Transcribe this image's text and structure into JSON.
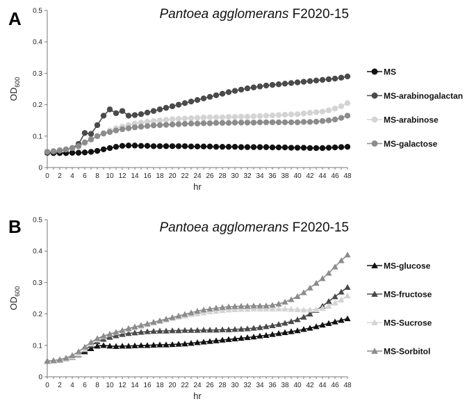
{
  "chart_data": [
    {
      "type": "line",
      "panel_label": "A",
      "title_italic": "Pantoea agglomerans",
      "title_rest": " F2020-15",
      "xlabel": "hr",
      "ylabel_main": "OD",
      "ylabel_sub": "600",
      "ylim": [
        0,
        0.5
      ],
      "yticks": [
        "0",
        "0.1",
        "0.2",
        "0.3",
        "0.4",
        "0.5"
      ],
      "xlim": [
        0,
        48
      ],
      "xticks": [
        "0",
        "2",
        "4",
        "6",
        "8",
        "10",
        "12",
        "14",
        "16",
        "18",
        "20",
        "22",
        "24",
        "26",
        "28",
        "30",
        "32",
        "34",
        "36",
        "38",
        "40",
        "42",
        "44",
        "46",
        "48"
      ],
      "marker": "circle",
      "legend_position": "right",
      "x": [
        0,
        1,
        2,
        3,
        4,
        5,
        6,
        7,
        8,
        9,
        10,
        11,
        12,
        13,
        14,
        15,
        16,
        17,
        18,
        19,
        20,
        21,
        22,
        23,
        24,
        25,
        26,
        27,
        28,
        29,
        30,
        31,
        32,
        33,
        34,
        35,
        36,
        37,
        38,
        39,
        40,
        41,
        42,
        43,
        44,
        45,
        46,
        47,
        48
      ],
      "series": [
        {
          "name": "MS",
          "color": "#111111",
          "values": [
            0.047,
            0.046,
            0.046,
            0.046,
            0.047,
            0.047,
            0.048,
            0.05,
            0.053,
            0.058,
            0.062,
            0.066,
            0.069,
            0.07,
            0.07,
            0.069,
            0.069,
            0.068,
            0.068,
            0.068,
            0.068,
            0.068,
            0.068,
            0.067,
            0.067,
            0.067,
            0.067,
            0.066,
            0.066,
            0.066,
            0.066,
            0.065,
            0.065,
            0.065,
            0.065,
            0.065,
            0.064,
            0.064,
            0.064,
            0.063,
            0.063,
            0.063,
            0.062,
            0.062,
            0.062,
            0.063,
            0.064,
            0.065,
            0.066
          ]
        },
        {
          "name": "MS-arabinogalactan",
          "color": "#4a4a4a",
          "values": [
            0.05,
            0.051,
            0.053,
            0.057,
            0.062,
            0.075,
            0.11,
            0.107,
            0.135,
            0.165,
            0.185,
            0.173,
            0.18,
            0.165,
            0.167,
            0.17,
            0.175,
            0.18,
            0.185,
            0.19,
            0.195,
            0.2,
            0.205,
            0.21,
            0.215,
            0.22,
            0.225,
            0.23,
            0.235,
            0.24,
            0.244,
            0.248,
            0.252,
            0.255,
            0.258,
            0.261,
            0.263,
            0.265,
            0.267,
            0.269,
            0.271,
            0.273,
            0.275,
            0.277,
            0.279,
            0.281,
            0.283,
            0.286,
            0.29
          ]
        },
        {
          "name": "MS-arabinose",
          "color": "#d4d4d4",
          "values": [
            0.05,
            0.052,
            0.055,
            0.058,
            0.062,
            0.068,
            0.078,
            0.088,
            0.1,
            0.11,
            0.118,
            0.125,
            0.13,
            0.135,
            0.14,
            0.143,
            0.146,
            0.148,
            0.15,
            0.152,
            0.154,
            0.155,
            0.156,
            0.157,
            0.158,
            0.159,
            0.16,
            0.16,
            0.16,
            0.161,
            0.161,
            0.162,
            0.162,
            0.163,
            0.164,
            0.165,
            0.166,
            0.167,
            0.168,
            0.169,
            0.17,
            0.172,
            0.174,
            0.176,
            0.178,
            0.182,
            0.188,
            0.195,
            0.205
          ]
        },
        {
          "name": "MS-galactose",
          "color": "#8c8c8c",
          "values": [
            0.05,
            0.052,
            0.055,
            0.058,
            0.062,
            0.068,
            0.08,
            0.09,
            0.1,
            0.108,
            0.113,
            0.118,
            0.122,
            0.125,
            0.128,
            0.13,
            0.132,
            0.134,
            0.135,
            0.136,
            0.137,
            0.138,
            0.139,
            0.14,
            0.14,
            0.141,
            0.141,
            0.142,
            0.142,
            0.142,
            0.143,
            0.143,
            0.143,
            0.143,
            0.144,
            0.144,
            0.144,
            0.144,
            0.144,
            0.144,
            0.144,
            0.145,
            0.145,
            0.146,
            0.148,
            0.15,
            0.153,
            0.158,
            0.165
          ]
        }
      ]
    },
    {
      "type": "line",
      "panel_label": "B",
      "title_italic": "Pantoea agglomerans",
      "title_rest": " F2020-15",
      "xlabel": "hr",
      "ylabel_main": "OD",
      "ylabel_sub": "600",
      "ylim": [
        0,
        0.5
      ],
      "yticks": [
        "0",
        "0.1",
        "0.2",
        "0.3",
        "0.4",
        "0.5"
      ],
      "xlim": [
        0,
        48
      ],
      "xticks": [
        "0",
        "2",
        "4",
        "6",
        "8",
        "10",
        "12",
        "14",
        "16",
        "18",
        "20",
        "22",
        "24",
        "26",
        "28",
        "30",
        "32",
        "34",
        "36",
        "38",
        "40",
        "42",
        "44",
        "46",
        "48"
      ],
      "marker": "triangle",
      "legend_position": "right",
      "x": [
        0,
        1,
        2,
        3,
        4,
        5,
        6,
        7,
        8,
        9,
        10,
        11,
        12,
        13,
        14,
        15,
        16,
        17,
        18,
        19,
        20,
        21,
        22,
        23,
        24,
        25,
        26,
        27,
        28,
        29,
        30,
        31,
        32,
        33,
        34,
        35,
        36,
        37,
        38,
        39,
        40,
        41,
        42,
        43,
        44,
        45,
        46,
        47,
        48
      ],
      "series": [
        {
          "name": "MS-glucose",
          "color": "#111111",
          "values": [
            0.05,
            0.051,
            0.053,
            0.057,
            0.062,
            0.07,
            0.08,
            0.09,
            0.098,
            0.1,
            0.098,
            0.097,
            0.098,
            0.098,
            0.099,
            0.1,
            0.1,
            0.101,
            0.102,
            0.102,
            0.103,
            0.104,
            0.105,
            0.107,
            0.109,
            0.111,
            0.113,
            0.115,
            0.117,
            0.119,
            0.121,
            0.123,
            0.125,
            0.127,
            0.13,
            0.132,
            0.135,
            0.138,
            0.141,
            0.144,
            0.147,
            0.151,
            0.155,
            0.16,
            0.165,
            0.17,
            0.175,
            0.18,
            0.185
          ]
        },
        {
          "name": "MS-fructose",
          "color": "#4a4a4a",
          "values": [
            0.05,
            0.051,
            0.053,
            0.057,
            0.062,
            0.07,
            0.085,
            0.1,
            0.112,
            0.12,
            0.126,
            0.131,
            0.135,
            0.138,
            0.14,
            0.142,
            0.144,
            0.145,
            0.146,
            0.146,
            0.147,
            0.147,
            0.148,
            0.148,
            0.148,
            0.149,
            0.149,
            0.149,
            0.15,
            0.15,
            0.151,
            0.152,
            0.153,
            0.155,
            0.157,
            0.16,
            0.163,
            0.167,
            0.171,
            0.176,
            0.182,
            0.19,
            0.2,
            0.212,
            0.225,
            0.24,
            0.255,
            0.27,
            0.285
          ]
        },
        {
          "name": "MS-Sucrose",
          "color": "#d4d4d4",
          "values": [
            0.05,
            0.051,
            0.053,
            0.057,
            0.063,
            0.072,
            0.088,
            0.105,
            0.118,
            0.128,
            0.135,
            0.141,
            0.146,
            0.151,
            0.156,
            0.161,
            0.166,
            0.171,
            0.176,
            0.181,
            0.186,
            0.19,
            0.194,
            0.198,
            0.201,
            0.204,
            0.207,
            0.209,
            0.211,
            0.213,
            0.214,
            0.215,
            0.215,
            0.216,
            0.216,
            0.216,
            0.216,
            0.216,
            0.216,
            0.215,
            0.214,
            0.213,
            0.213,
            0.214,
            0.218,
            0.225,
            0.235,
            0.245,
            0.258
          ]
        },
        {
          "name": "MS-Sorbitol",
          "color": "#8c8c8c",
          "values": [
            0.05,
            0.052,
            0.055,
            0.06,
            0.068,
            0.08,
            0.095,
            0.11,
            0.122,
            0.13,
            0.136,
            0.142,
            0.148,
            0.154,
            0.159,
            0.164,
            0.169,
            0.174,
            0.179,
            0.184,
            0.189,
            0.194,
            0.199,
            0.204,
            0.209,
            0.213,
            0.216,
            0.219,
            0.221,
            0.223,
            0.224,
            0.225,
            0.225,
            0.226,
            0.226,
            0.226,
            0.228,
            0.232,
            0.238,
            0.246,
            0.256,
            0.268,
            0.283,
            0.298,
            0.313,
            0.33,
            0.35,
            0.37,
            0.388
          ]
        }
      ]
    }
  ]
}
